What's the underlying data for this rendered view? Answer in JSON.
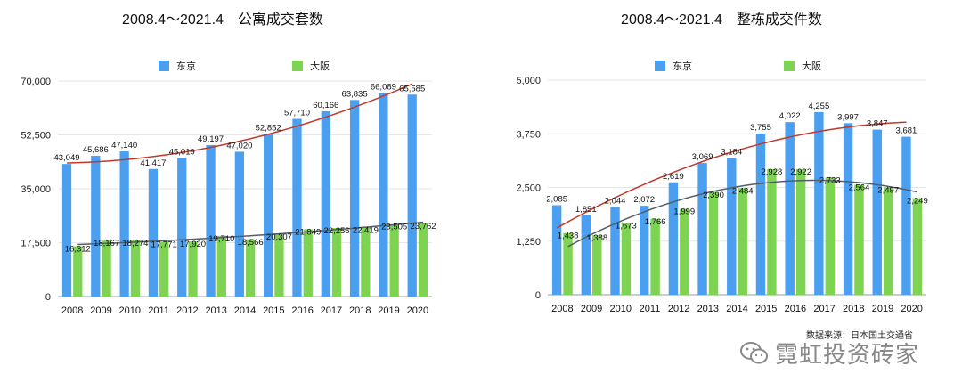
{
  "colors": {
    "tokyo": "#4a9ff0",
    "osaka": "#7ed352",
    "trend_tokyo": "#c0392b",
    "trend_osaka": "#555d66",
    "grid": "#e6e6e6"
  },
  "source_note": "数据来源：日本国土交通省",
  "brand": {
    "name": "霓虹投资砖家",
    "icon": "wechat-icon"
  },
  "chart_data": [
    {
      "type": "bar",
      "title": "2008.4～2021.4　公寓成交套数",
      "categories": [
        "2008",
        "2009",
        "2010",
        "2011",
        "2012",
        "2013",
        "2014",
        "2015",
        "2016",
        "2017",
        "2018",
        "2019",
        "2020"
      ],
      "series": [
        {
          "name": "东京",
          "values": [
            43049,
            45686,
            47140,
            41417,
            45019,
            49197,
            47020,
            52852,
            57710,
            60166,
            63835,
            66089,
            65585
          ]
        },
        {
          "name": "大阪",
          "values": [
            16312,
            18167,
            18274,
            17771,
            17920,
            19710,
            18566,
            20307,
            21849,
            22256,
            22419,
            23505,
            23762
          ]
        }
      ],
      "ylim": [
        0,
        70000
      ],
      "yticks": [
        "0",
        "17,500",
        "35,000",
        "52,500",
        "70,000"
      ],
      "grid": true,
      "legend": "top",
      "trendlines": true
    },
    {
      "type": "bar",
      "title": "2008.4～2021.4　整栋成交件数",
      "categories": [
        "2008",
        "2009",
        "2010",
        "2011",
        "2012",
        "2013",
        "2014",
        "2015",
        "2016",
        "2017",
        "2018",
        "2019",
        "2020"
      ],
      "series": [
        {
          "name": "东京",
          "values": [
            2085,
            1851,
            2044,
            2072,
            2619,
            3069,
            3184,
            3755,
            4022,
            4255,
            3997,
            3847,
            3681
          ]
        },
        {
          "name": "大阪",
          "values": [
            1438,
            1388,
            1673,
            1766,
            1999,
            2390,
            2484,
            2928,
            2922,
            2733,
            2564,
            2497,
            2249
          ]
        }
      ],
      "ylim": [
        0,
        5000
      ],
      "yticks": [
        "0",
        "1,250",
        "2,500",
        "3,750",
        "5,000"
      ],
      "grid": true,
      "legend": "top",
      "trendlines": true
    }
  ]
}
